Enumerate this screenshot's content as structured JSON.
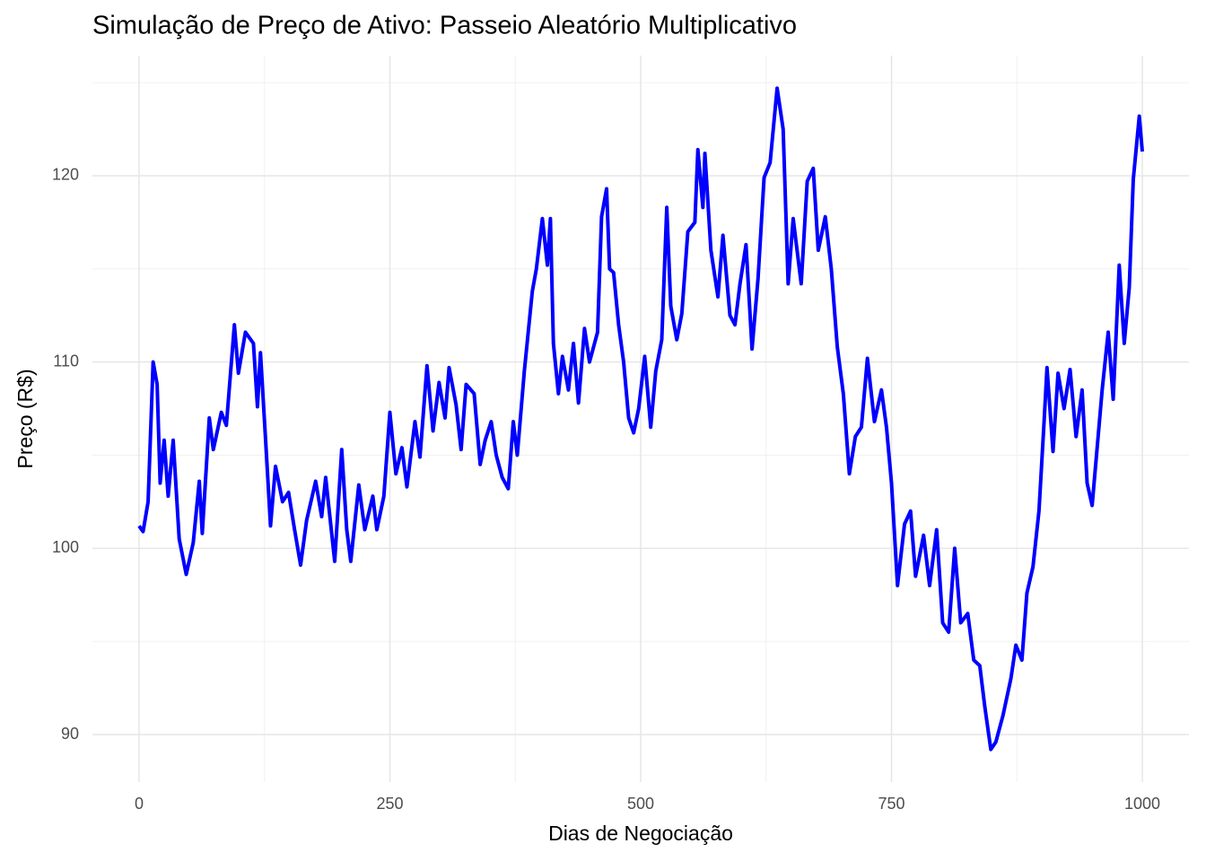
{
  "chart_data": {
    "type": "line",
    "title": "Simulação de Preço de Ativo: Passeio Aleatório Multiplicativo",
    "x_label": "Dias de Negociação",
    "y_label": "Preço (R$)",
    "color": "#0000ff",
    "x": [
      0,
      4,
      9,
      14,
      18,
      21,
      25,
      29,
      34,
      40,
      47,
      54,
      60,
      63,
      70,
      74,
      82,
      87,
      95,
      99,
      106,
      114,
      118,
      121,
      127,
      131,
      136,
      143,
      149,
      155,
      161,
      167,
      176,
      182,
      186,
      195,
      202,
      207,
      211,
      219,
      225,
      233,
      237,
      244,
      250,
      256,
      262,
      267,
      275,
      280,
      287,
      293,
      299,
      305,
      309,
      316,
      321,
      326,
      334,
      340,
      345,
      351,
      356,
      362,
      368,
      373,
      377,
      384,
      392,
      396,
      402,
      407,
      410,
      413,
      418,
      422,
      428,
      433,
      438,
      444,
      449,
      457,
      461,
      466,
      469,
      473,
      478,
      483,
      488,
      493,
      498,
      504,
      510,
      515,
      521,
      526,
      530,
      536,
      541,
      547,
      554,
      557,
      562,
      564,
      570,
      577,
      582,
      589,
      594,
      599,
      605,
      611,
      617,
      623,
      629,
      636,
      642,
      647,
      652,
      660,
      666,
      672,
      677,
      684,
      690,
      696,
      702,
      708,
      714,
      720,
      726,
      733,
      740,
      745,
      750,
      756,
      763,
      769,
      774,
      782,
      788,
      795,
      801,
      807,
      813,
      819,
      826,
      832,
      838,
      843,
      849,
      854,
      861,
      869,
      874,
      880,
      885,
      891,
      897,
      902,
      905,
      911,
      916,
      922,
      928,
      934,
      940,
      945,
      950,
      955,
      960,
      966,
      971,
      977,
      982,
      987,
      991,
      997,
      1000
    ],
    "values": [
      101.2,
      100.9,
      102.5,
      110,
      108.8,
      103.5,
      105.8,
      102.8,
      105.8,
      100.5,
      98.6,
      100.3,
      103.6,
      100.8,
      107,
      105.3,
      107.3,
      106.6,
      112,
      109.4,
      111.6,
      111,
      107.6,
      110.5,
      105,
      101.2,
      104.4,
      102.5,
      103,
      101,
      99.1,
      101.5,
      103.6,
      101.7,
      103.8,
      99.3,
      105.3,
      101,
      99.3,
      103.4,
      101,
      102.8,
      101,
      102.8,
      107.3,
      104,
      105.4,
      103.3,
      106.8,
      104.9,
      109.8,
      106.3,
      108.9,
      107,
      109.7,
      107.7,
      105.3,
      108.8,
      108.3,
      104.5,
      105.8,
      106.8,
      105,
      103.8,
      103.2,
      106.8,
      105,
      109.5,
      113.8,
      115,
      117.7,
      115.2,
      117.7,
      111,
      108.3,
      110.3,
      108.5,
      111,
      107.8,
      111.8,
      110,
      111.6,
      117.8,
      119.3,
      115,
      114.8,
      112,
      110,
      107,
      106.2,
      107.5,
      110.3,
      106.5,
      109.5,
      111.2,
      118.3,
      113,
      111.2,
      112.6,
      117,
      117.5,
      121.4,
      118.3,
      121.2,
      116,
      113.5,
      116.8,
      112.5,
      112,
      114.2,
      116.3,
      110.7,
      114.5,
      119.9,
      120.7,
      124.7,
      122.5,
      114.2,
      117.7,
      114.2,
      119.7,
      120.4,
      116,
      117.8,
      115,
      110.8,
      108.3,
      104,
      106,
      106.5,
      110.2,
      106.8,
      108.5,
      106.5,
      103.5,
      98,
      101.3,
      102,
      98.5,
      100.7,
      98,
      101,
      96,
      95.5,
      100,
      96,
      96.5,
      94,
      93.7,
      91.5,
      89.2,
      89.6,
      91,
      93,
      94.8,
      94,
      97.6,
      99,
      102,
      106.7,
      109.7,
      105.2,
      109.4,
      107.5,
      109.6,
      106,
      108.5,
      103.5,
      102.3,
      105.4,
      108.5,
      111.6,
      108,
      115.2,
      111,
      114,
      119.8,
      123.2,
      121.3
    ],
    "xlim": [
      -46.5,
      1046.5
    ],
    "xticks": [
      0,
      250,
      500,
      750,
      1000
    ],
    "minor_xticks": [
      125,
      375,
      625,
      875
    ],
    "ylim": [
      87.45,
      126.45
    ],
    "yticks": [
      90,
      100,
      110,
      120
    ],
    "minor_yticks": [
      95,
      105,
      115,
      125
    ],
    "grid": true
  }
}
